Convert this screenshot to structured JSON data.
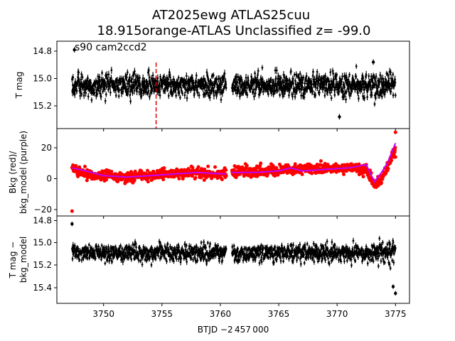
{
  "title_line1": "AT2025ewg  ATLAS25cuu",
  "title_line2": "18.915orange-ATLAS Unclassified z= -99.0",
  "annotation": "s90 cam2ccd2",
  "xlabel": "BTJD −2 457 000",
  "x_ticks": [
    "3750",
    "3755",
    "3760",
    "3765",
    "3770",
    "3775"
  ],
  "colors": {
    "lc": "#000000",
    "bkg": "#ff0000",
    "model": "#bf00ff",
    "marker": "#dc0000"
  },
  "chart_data": [
    {
      "type": "scatter",
      "name_panel": "top",
      "ylabel": "T mag",
      "y_inverted": true,
      "ylim": [
        15.38,
        14.73
      ],
      "xlim": [
        3746.0,
        3776.2
      ],
      "y_ticks": [
        "14.8",
        "15.0",
        "15.2"
      ],
      "segments": [
        [
          3747.3,
          3760.5
        ],
        [
          3761.0,
          3775.0
        ]
      ],
      "median_mag": 15.05,
      "scatter_range": [
        14.88,
        15.22
      ],
      "outliers": [
        {
          "x": 3747.5,
          "y": 14.79
        },
        {
          "x": 3773.1,
          "y": 14.88
        },
        {
          "x": 3770.2,
          "y": 15.28
        }
      ],
      "vline_x": 3754.5
    },
    {
      "type": "scatter",
      "name_panel": "middle",
      "ylabel": "Bkg (red)/\nbkg_model (purple)",
      "ylim": [
        -24,
        32
      ],
      "xlim": [
        3746.0,
        3776.2
      ],
      "y_ticks": [
        "20",
        "0",
        "−20"
      ],
      "series": [
        {
          "name": "Bkg (red)",
          "trend": [
            [
              3747.3,
              6
            ],
            [
              3748.5,
              3
            ],
            [
              3750,
              2
            ],
            [
              3752,
              1
            ],
            [
              3754,
              2
            ],
            [
              3756,
              3
            ],
            [
              3758,
              4
            ],
            [
              3760.5,
              3
            ],
            [
              3761.0,
              4
            ],
            [
              3763,
              5
            ],
            [
              3765,
              6
            ],
            [
              3767,
              6
            ],
            [
              3769,
              6
            ],
            [
              3771,
              7
            ],
            [
              3772.5,
              6
            ],
            [
              3773.2,
              -4
            ],
            [
              3773.8,
              0
            ],
            [
              3774.3,
              8
            ],
            [
              3775.0,
              18
            ]
          ],
          "spread": 7,
          "outliers": [
            {
              "x": 3747.3,
              "y": -21
            },
            {
              "x": 3775.0,
              "y": 30
            }
          ]
        },
        {
          "name": "bkg_model (purple)",
          "points": [
            [
              3747.3,
              7
            ],
            [
              3748.5,
              5
            ],
            [
              3750,
              2
            ],
            [
              3752,
              1
            ],
            [
              3754,
              2
            ],
            [
              3756,
              3
            ],
            [
              3758,
              4
            ],
            [
              3760.5,
              3
            ],
            [
              3761.0,
              4
            ],
            [
              3763,
              4
            ],
            [
              3765,
              5
            ],
            [
              3766,
              7
            ],
            [
              3767,
              5
            ],
            [
              3769,
              6
            ],
            [
              3771,
              7
            ],
            [
              3772.5,
              9
            ],
            [
              3773.2,
              -2
            ],
            [
              3773.8,
              4
            ],
            [
              3774.3,
              10
            ],
            [
              3775.0,
              23
            ]
          ]
        }
      ]
    },
    {
      "type": "scatter",
      "name_panel": "bottom",
      "ylabel": "T mag −\nbkg_model",
      "y_inverted": true,
      "ylim": [
        15.53,
        14.77
      ],
      "xlim": [
        3746.0,
        3776.2
      ],
      "y_ticks": [
        "14.8",
        "15.0",
        "15.2",
        "15.4"
      ],
      "segments": [
        [
          3747.3,
          3760.5
        ],
        [
          3761.0,
          3775.0
        ]
      ],
      "median_mag": 15.09,
      "scatter_range": [
        14.95,
        15.25
      ],
      "outliers": [
        {
          "x": 3747.3,
          "y": 14.83
        },
        {
          "x": 3775.0,
          "y": 15.45
        },
        {
          "x": 3774.8,
          "y": 15.39
        }
      ]
    }
  ]
}
